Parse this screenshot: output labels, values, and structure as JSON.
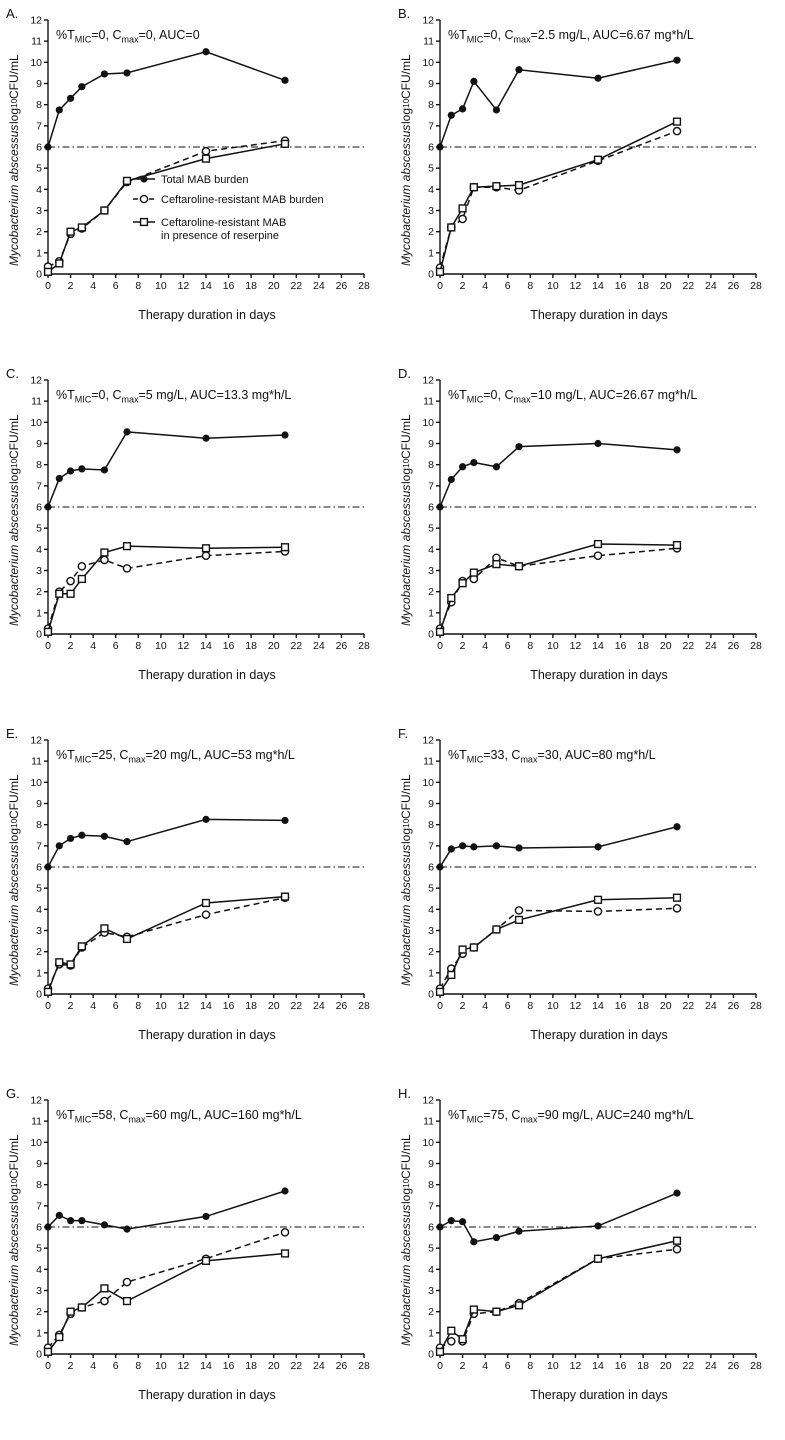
{
  "labels": {
    "title_prefix": "%T",
    "sub_mic": "MIC",
    "sub_max": "max"
  },
  "chart_data": {
    "type": "line",
    "x": [
      0,
      1,
      2,
      3,
      5,
      7,
      14,
      21
    ],
    "xlim": [
      0,
      28
    ],
    "ylim": [
      0,
      12
    ],
    "xticks": [
      0,
      2,
      4,
      6,
      8,
      10,
      12,
      14,
      16,
      18,
      20,
      22,
      24,
      26,
      28
    ],
    "yticks": [
      0,
      1,
      2,
      3,
      4,
      5,
      6,
      7,
      8,
      9,
      10,
      11,
      12
    ],
    "threshold_y": 6,
    "xlabel": "Therapy duration in days",
    "ylabel": {
      "italic": "Mycobacterium abscessus",
      "log": " log",
      "sub": "10",
      "units": " CFU/mL"
    },
    "series_meta": [
      {
        "name": "Total MAB burden",
        "marker": "filled-circle",
        "line": "solid",
        "legend_lines": [
          "Total MAB burden"
        ]
      },
      {
        "name": "Ceftaroline-resistant MAB burden",
        "marker": "open-circle",
        "line": "dashed",
        "legend_lines": [
          "Ceftaroline-resistant MAB burden"
        ]
      },
      {
        "name": "Ceftaroline-resistant MAB in presence of reserpine",
        "marker": "open-square",
        "line": "solid",
        "legend_lines": [
          "Ceftaroline-resistant MAB",
          "in presence of reserpine"
        ]
      }
    ],
    "panels": [
      {
        "letter": "A.",
        "title_mid": "=0,  C",
        "title_end": "=0, AUC=0",
        "total": [
          6.0,
          7.75,
          8.3,
          8.85,
          9.45,
          9.5,
          10.5,
          9.15
        ],
        "resistant": [
          0.35,
          0.6,
          1.9,
          2.15,
          3.0,
          4.35,
          5.8,
          6.3
        ],
        "reserpine": [
          0.1,
          0.5,
          2.0,
          2.2,
          3.0,
          4.4,
          5.45,
          6.15
        ]
      },
      {
        "letter": "B.",
        "title_mid": "=0, C",
        "title_end": "=2.5 mg/L, AUC=6.67 mg*h/L",
        "total": [
          6.0,
          7.5,
          7.8,
          9.1,
          7.75,
          9.65,
          9.25,
          10.1
        ],
        "resistant": [
          0.3,
          2.2,
          2.6,
          4.1,
          4.1,
          3.95,
          5.35,
          6.75
        ],
        "reserpine": [
          0.1,
          2.2,
          3.1,
          4.1,
          4.15,
          4.2,
          5.4,
          7.2
        ]
      },
      {
        "letter": "C.",
        "title_mid": "=0,  C",
        "title_end": "=5 mg/L, AUC=13.3 mg*h/L",
        "total": [
          6.0,
          7.35,
          7.7,
          7.8,
          7.75,
          9.55,
          9.25,
          9.4
        ],
        "resistant": [
          0.25,
          2.0,
          2.5,
          3.2,
          3.5,
          3.1,
          3.7,
          3.9
        ],
        "reserpine": [
          0.1,
          1.9,
          1.9,
          2.6,
          3.85,
          4.15,
          4.05,
          4.1
        ]
      },
      {
        "letter": "D.",
        "title_mid": "=0, C",
        "title_end": "=10 mg/L, AUC=26.67 mg*h/L",
        "total": [
          6.0,
          7.3,
          7.9,
          8.1,
          7.9,
          8.85,
          9.0,
          8.7
        ],
        "resistant": [
          0.25,
          1.5,
          2.5,
          2.6,
          3.6,
          3.2,
          3.7,
          4.05
        ],
        "reserpine": [
          0.1,
          1.7,
          2.4,
          2.9,
          3.3,
          3.2,
          4.25,
          4.2
        ]
      },
      {
        "letter": "E.",
        "title_mid": "=25, C",
        "title_end": "=20 mg/L, AUC=53 mg*h/L",
        "total": [
          6.0,
          7.0,
          7.35,
          7.5,
          7.45,
          7.2,
          8.25,
          8.2
        ],
        "resistant": [
          0.25,
          1.4,
          1.35,
          2.2,
          2.9,
          2.7,
          3.75,
          4.55
        ],
        "reserpine": [
          0.1,
          1.5,
          1.4,
          2.25,
          3.1,
          2.6,
          4.3,
          4.6
        ]
      },
      {
        "letter": "F.",
        "title_mid": "=33, C",
        "title_end": "=30, AUC=80 mg*h/L",
        "total": [
          6.0,
          6.85,
          7.0,
          6.95,
          7.0,
          6.9,
          6.95,
          7.9
        ],
        "resistant": [
          0.25,
          1.2,
          1.9,
          2.2,
          3.05,
          3.95,
          3.9,
          4.05
        ],
        "reserpine": [
          0.1,
          0.9,
          2.1,
          2.2,
          3.05,
          3.5,
          4.45,
          4.55
        ]
      },
      {
        "letter": "G.",
        "title_mid": "=58, C",
        "title_end": "=60 mg/L, AUC=160 mg*h/L",
        "total": [
          6.0,
          6.55,
          6.3,
          6.3,
          6.1,
          5.9,
          6.5,
          7.7
        ],
        "resistant": [
          0.3,
          0.9,
          1.9,
          2.2,
          2.5,
          3.4,
          4.5,
          5.75
        ],
        "reserpine": [
          0.1,
          0.8,
          2.0,
          2.2,
          3.1,
          2.5,
          4.4,
          4.75
        ]
      },
      {
        "letter": "H.",
        "title_mid": "=75, C",
        "title_end": "=90 mg/L, AUC=240 mg*h/L",
        "total": [
          6.0,
          6.3,
          6.25,
          5.3,
          5.5,
          5.8,
          6.05,
          7.6
        ],
        "resistant": [
          0.3,
          0.6,
          0.6,
          1.9,
          2.0,
          2.4,
          4.5,
          4.95
        ],
        "reserpine": [
          0.1,
          1.1,
          0.7,
          2.1,
          2.0,
          2.3,
          4.5,
          5.35
        ]
      }
    ]
  }
}
